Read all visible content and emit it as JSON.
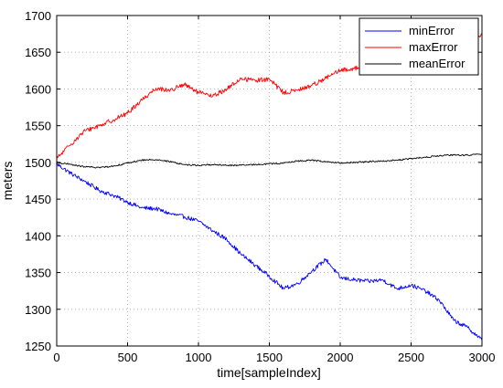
{
  "chart_data": {
    "type": "line",
    "title": "",
    "xlabel": "time[sampleIndex]",
    "ylabel": "meters",
    "xlim": [
      0,
      3000
    ],
    "ylim": [
      1250,
      1700
    ],
    "xticks": [
      0,
      500,
      1000,
      1500,
      2000,
      2500,
      3000
    ],
    "yticks": [
      1250,
      1300,
      1350,
      1400,
      1450,
      1500,
      1550,
      1600,
      1650,
      1700
    ],
    "grid": true,
    "legend_position": "top-right",
    "x": [
      0,
      100,
      200,
      300,
      400,
      500,
      600,
      700,
      800,
      900,
      1000,
      1100,
      1200,
      1300,
      1400,
      1500,
      1600,
      1700,
      1800,
      1900,
      2000,
      2100,
      2200,
      2300,
      2400,
      2500,
      2600,
      2700,
      2800,
      2900,
      3000
    ],
    "series": [
      {
        "name": "minError",
        "color": "#0000ff",
        "values": [
          1498,
          1485,
          1474,
          1462,
          1455,
          1446,
          1438,
          1437,
          1430,
          1426,
          1420,
          1407,
          1395,
          1375,
          1360,
          1345,
          1328,
          1335,
          1352,
          1368,
          1343,
          1340,
          1338,
          1340,
          1328,
          1333,
          1325,
          1312,
          1285,
          1275,
          1258
        ]
      },
      {
        "name": "maxError",
        "color": "#ff0000",
        "values": [
          1505,
          1525,
          1543,
          1550,
          1558,
          1567,
          1585,
          1601,
          1598,
          1606,
          1595,
          1590,
          1600,
          1614,
          1612,
          1613,
          1595,
          1598,
          1605,
          1615,
          1625,
          1628,
          1632,
          1636,
          1640,
          1645,
          1650,
          1655,
          1660,
          1666,
          1675
        ]
      },
      {
        "name": "meanError",
        "color": "#000000",
        "values": [
          1500,
          1497,
          1494,
          1493,
          1495,
          1499,
          1503,
          1504,
          1501,
          1497,
          1496,
          1497,
          1496,
          1496,
          1497,
          1498,
          1499,
          1502,
          1503,
          1501,
          1499,
          1500,
          1501,
          1502,
          1503,
          1505,
          1507,
          1509,
          1510,
          1510,
          1511
        ]
      }
    ]
  }
}
